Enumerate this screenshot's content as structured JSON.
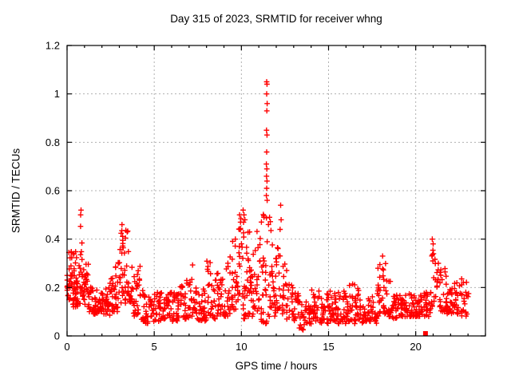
{
  "chart_data": {
    "type": "scatter",
    "title": "Day 315 of 2023, SRMTID for receiver whng",
    "xlabel": "GPS time / hours",
    "ylabel": "SRMTID / TECUs",
    "xlim": [
      0,
      24
    ],
    "ylim": [
      0,
      1.2
    ],
    "xticks": [
      0,
      5,
      10,
      15,
      20
    ],
    "xtick_labels": [
      "0",
      "5",
      "10",
      "15",
      "20"
    ],
    "xminor_step": 1,
    "yticks": [
      0,
      0.2,
      0.4,
      0.6,
      0.8,
      1,
      1.2
    ],
    "ytick_labels": [
      "0",
      "0.2",
      "0.4",
      "0.6",
      "0.8",
      "1",
      "1.2"
    ],
    "grid": true,
    "grid_color": "#b0b0b0",
    "legend": "none",
    "series": [
      {
        "name": "srmtid-scatter",
        "marker": "plus",
        "color": "#ff0000",
        "density_bins_format": [
          "x_start_hours",
          "x_end_hours",
          "y_min_tecus",
          "y_max_tecus",
          "approx_point_count"
        ],
        "density_bins": [
          [
            0.0,
            0.25,
            0.15,
            0.35,
            26
          ],
          [
            0.25,
            0.5,
            0.12,
            0.35,
            26
          ],
          [
            0.5,
            0.75,
            0.12,
            0.33,
            22
          ],
          [
            0.75,
            1.0,
            0.15,
            0.47,
            24
          ],
          [
            1.0,
            1.25,
            0.12,
            0.3,
            18
          ],
          [
            1.25,
            1.5,
            0.1,
            0.22,
            16
          ],
          [
            1.5,
            1.75,
            0.09,
            0.2,
            16
          ],
          [
            1.75,
            2.0,
            0.1,
            0.2,
            16
          ],
          [
            2.0,
            2.25,
            0.09,
            0.21,
            16
          ],
          [
            2.25,
            2.5,
            0.08,
            0.23,
            16
          ],
          [
            2.5,
            2.75,
            0.1,
            0.25,
            16
          ],
          [
            2.75,
            3.0,
            0.1,
            0.33,
            16
          ],
          [
            3.0,
            3.25,
            0.12,
            0.46,
            18
          ],
          [
            3.25,
            3.5,
            0.12,
            0.44,
            16
          ],
          [
            3.5,
            3.75,
            0.14,
            0.36,
            16
          ],
          [
            3.75,
            4.0,
            0.08,
            0.26,
            14
          ],
          [
            4.0,
            4.25,
            0.08,
            0.3,
            14
          ],
          [
            4.25,
            4.5,
            0.06,
            0.22,
            14
          ],
          [
            4.5,
            4.75,
            0.05,
            0.18,
            14
          ],
          [
            4.75,
            5.0,
            0.06,
            0.17,
            14
          ],
          [
            5.0,
            5.5,
            0.06,
            0.2,
            28
          ],
          [
            5.5,
            6.0,
            0.07,
            0.18,
            28
          ],
          [
            6.0,
            6.5,
            0.06,
            0.18,
            28
          ],
          [
            6.5,
            7.0,
            0.07,
            0.24,
            28
          ],
          [
            7.0,
            7.25,
            0.08,
            0.3,
            14
          ],
          [
            7.25,
            7.5,
            0.07,
            0.2,
            14
          ],
          [
            7.5,
            8.0,
            0.06,
            0.2,
            28
          ],
          [
            8.0,
            8.25,
            0.08,
            0.31,
            14
          ],
          [
            8.25,
            8.5,
            0.07,
            0.22,
            14
          ],
          [
            8.5,
            9.0,
            0.08,
            0.26,
            28
          ],
          [
            9.0,
            9.25,
            0.08,
            0.33,
            14
          ],
          [
            9.25,
            9.5,
            0.09,
            0.35,
            14
          ],
          [
            9.5,
            9.75,
            0.1,
            0.4,
            15
          ],
          [
            9.75,
            10.0,
            0.12,
            0.5,
            16
          ],
          [
            10.0,
            10.25,
            0.07,
            0.52,
            18
          ],
          [
            10.25,
            10.5,
            0.08,
            0.45,
            18
          ],
          [
            10.5,
            10.75,
            0.08,
            0.4,
            16
          ],
          [
            10.75,
            11.0,
            0.08,
            0.45,
            16
          ],
          [
            11.0,
            11.25,
            0.06,
            0.48,
            16
          ],
          [
            11.25,
            11.55,
            0.05,
            0.55,
            20
          ],
          [
            11.55,
            11.8,
            0.08,
            0.5,
            16
          ],
          [
            11.8,
            12.0,
            0.08,
            0.4,
            14
          ],
          [
            12.0,
            12.3,
            0.1,
            0.42,
            16
          ],
          [
            12.3,
            12.6,
            0.09,
            0.3,
            15
          ],
          [
            12.6,
            13.0,
            0.07,
            0.24,
            18
          ],
          [
            13.0,
            13.25,
            0.06,
            0.2,
            13
          ],
          [
            13.25,
            13.5,
            0.03,
            0.18,
            13
          ],
          [
            13.5,
            13.75,
            0.02,
            0.15,
            13
          ],
          [
            13.75,
            14.0,
            0.05,
            0.18,
            13
          ],
          [
            14.0,
            14.5,
            0.06,
            0.2,
            28
          ],
          [
            14.5,
            15.0,
            0.05,
            0.18,
            28
          ],
          [
            15.0,
            15.5,
            0.06,
            0.19,
            28
          ],
          [
            15.5,
            16.0,
            0.05,
            0.2,
            28
          ],
          [
            16.0,
            16.5,
            0.06,
            0.22,
            28
          ],
          [
            16.5,
            17.0,
            0.05,
            0.2,
            28
          ],
          [
            17.0,
            17.5,
            0.06,
            0.16,
            28
          ],
          [
            17.5,
            17.8,
            0.05,
            0.18,
            16
          ],
          [
            17.8,
            18.05,
            0.08,
            0.3,
            16
          ],
          [
            18.05,
            18.3,
            0.09,
            0.31,
            15
          ],
          [
            18.3,
            18.6,
            0.08,
            0.24,
            15
          ],
          [
            18.6,
            19.0,
            0.07,
            0.18,
            24
          ],
          [
            19.0,
            19.5,
            0.08,
            0.17,
            28
          ],
          [
            19.5,
            20.0,
            0.08,
            0.18,
            28
          ],
          [
            20.0,
            20.5,
            0.08,
            0.18,
            28
          ],
          [
            20.5,
            20.9,
            0.08,
            0.18,
            22
          ],
          [
            20.9,
            21.15,
            0.12,
            0.36,
            14
          ],
          [
            21.15,
            21.45,
            0.12,
            0.3,
            16
          ],
          [
            21.45,
            21.8,
            0.1,
            0.28,
            20
          ],
          [
            21.8,
            22.2,
            0.09,
            0.2,
            20
          ],
          [
            22.2,
            22.6,
            0.09,
            0.22,
            20
          ],
          [
            22.6,
            23.05,
            0.08,
            0.25,
            22
          ]
        ],
        "outlier_points": [
          [
            0.8,
            0.52
          ],
          [
            0.78,
            0.5
          ],
          [
            3.15,
            0.46
          ],
          [
            3.45,
            0.43
          ],
          [
            9.9,
            0.5
          ],
          [
            9.95,
            0.47
          ],
          [
            10.1,
            0.52
          ],
          [
            10.15,
            0.5
          ],
          [
            10.2,
            0.48
          ],
          [
            11.45,
            1.05
          ],
          [
            11.47,
            1.04
          ],
          [
            11.45,
            1.0
          ],
          [
            11.48,
            0.96
          ],
          [
            11.46,
            0.93
          ],
          [
            11.44,
            0.85
          ],
          [
            11.47,
            0.83
          ],
          [
            11.45,
            0.76
          ],
          [
            11.43,
            0.71
          ],
          [
            11.46,
            0.69
          ],
          [
            11.44,
            0.66
          ],
          [
            11.47,
            0.64
          ],
          [
            11.45,
            0.61
          ],
          [
            11.43,
            0.58
          ],
          [
            11.48,
            0.56
          ],
          [
            12.25,
            0.54
          ],
          [
            12.28,
            0.48
          ],
          [
            12.22,
            0.44
          ],
          [
            18.1,
            0.33
          ],
          [
            20.95,
            0.4
          ],
          [
            21.0,
            0.38
          ],
          [
            21.02,
            0.34
          ],
          [
            20.98,
            0.31
          ],
          [
            21.3,
            0.3
          ]
        ]
      },
      {
        "name": "flag-marker",
        "marker": "filled-square",
        "color": "#ff0000",
        "points": [
          [
            20.56,
            0.01
          ]
        ]
      }
    ]
  }
}
